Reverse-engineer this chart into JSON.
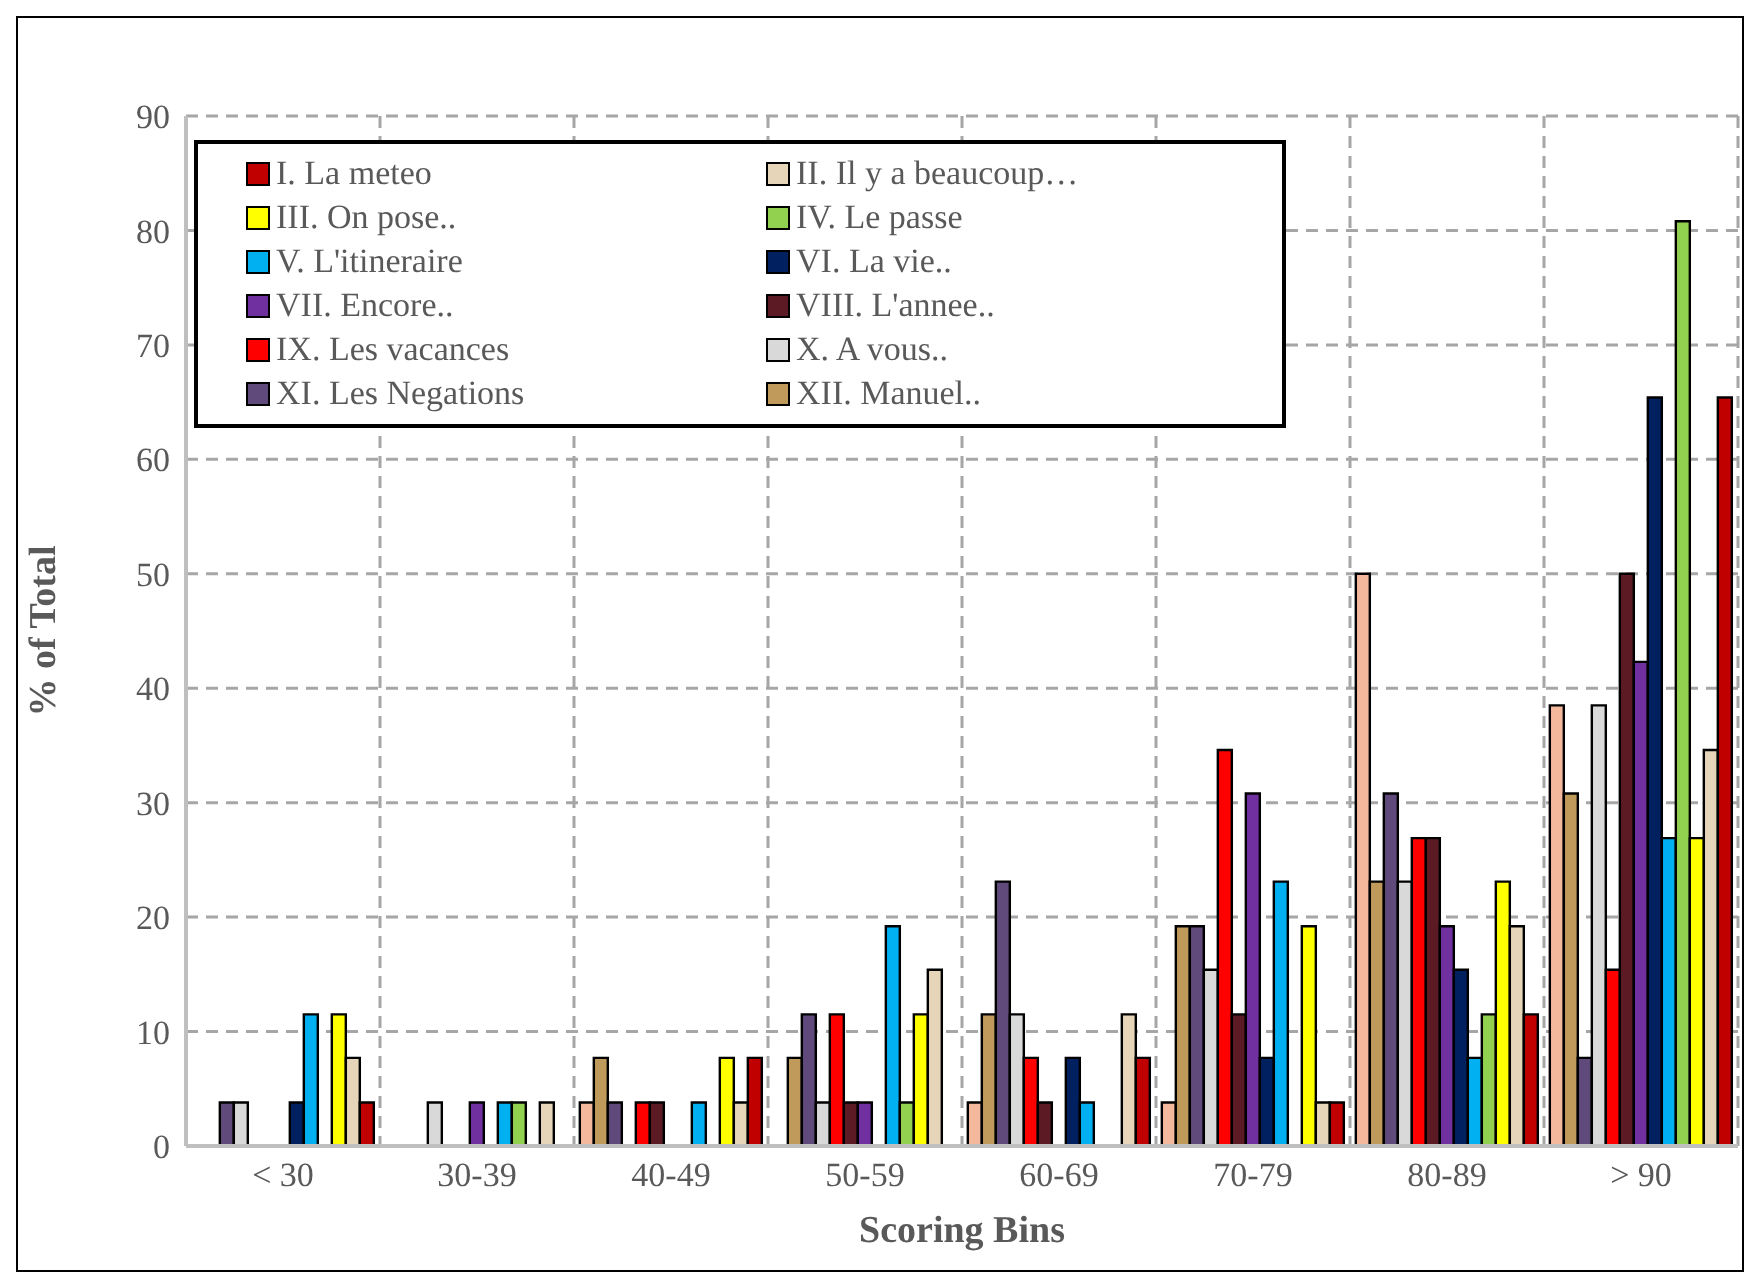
{
  "chart_data": {
    "type": "bar",
    "xlabel": "Scoring Bins",
    "ylabel": "% of Total",
    "categories": [
      "< 30",
      "30-39",
      "40-49",
      "50-59",
      "60-69",
      "70-79",
      "80-89",
      "> 90"
    ],
    "ylim": [
      0,
      90
    ],
    "yticks": [
      0,
      10,
      20,
      30,
      40,
      50,
      60,
      70,
      80,
      90
    ],
    "grid": true,
    "legend": "top left",
    "series": [
      {
        "name": "I. La meteo",
        "color": "#c00000",
        "values": [
          3.8,
          0,
          7.7,
          0,
          7.7,
          3.8,
          11.5,
          65.4
        ]
      },
      {
        "name": "II. Il y a beaucoup…",
        "color": "#e6d5b8",
        "values": [
          7.7,
          3.8,
          3.8,
          15.4,
          11.5,
          3.8,
          19.2,
          34.6
        ]
      },
      {
        "name": "III. On pose..",
        "color": "#ffff00",
        "values": [
          11.5,
          0,
          7.7,
          11.5,
          0,
          19.2,
          23.1,
          26.9
        ]
      },
      {
        "name": "IV. Le passe",
        "color": "#92d050",
        "values": [
          0,
          3.8,
          0,
          3.8,
          0,
          0,
          11.5,
          80.8
        ]
      },
      {
        "name": "V. L'itineraire",
        "color": "#00b0f0",
        "values": [
          11.5,
          3.8,
          3.8,
          19.2,
          3.8,
          23.1,
          7.7,
          26.9
        ]
      },
      {
        "name": "VI. La vie..",
        "color": "#002060",
        "values": [
          3.8,
          0,
          0,
          0,
          7.7,
          7.7,
          15.4,
          65.4
        ]
      },
      {
        "name": "VII. Encore..",
        "color": "#7030a0",
        "values": [
          0,
          3.8,
          0,
          3.8,
          0,
          30.8,
          19.2,
          42.3
        ]
      },
      {
        "name": "VIII. L'annee..",
        "color": "#5c1a24",
        "values": [
          0,
          0,
          3.8,
          3.8,
          3.8,
          11.5,
          26.9,
          50
        ]
      },
      {
        "name": "IX. Les vacances",
        "color": "#ff0000",
        "values": [
          0,
          0,
          3.8,
          11.5,
          7.7,
          34.6,
          26.9,
          15.4
        ]
      },
      {
        "name": "X. A vous..",
        "color": "#d9d9d9",
        "values": [
          3.8,
          3.8,
          0,
          3.8,
          11.5,
          15.4,
          23.1,
          38.5
        ]
      },
      {
        "name": "XI. Les Negations",
        "color": "#604a7b",
        "values": [
          3.8,
          0,
          3.8,
          11.5,
          23.1,
          19.2,
          30.8,
          7.7
        ]
      },
      {
        "name": "XII. Manuel..",
        "color": "#c09a5b",
        "values": [
          0,
          0,
          7.7,
          7.7,
          11.5,
          19.2,
          23.1,
          30.8
        ]
      },
      {
        "color": "#f4b89c",
        "values": [
          0,
          0,
          3.8,
          0,
          3.8,
          3.8,
          50,
          38.5
        ]
      }
    ]
  }
}
